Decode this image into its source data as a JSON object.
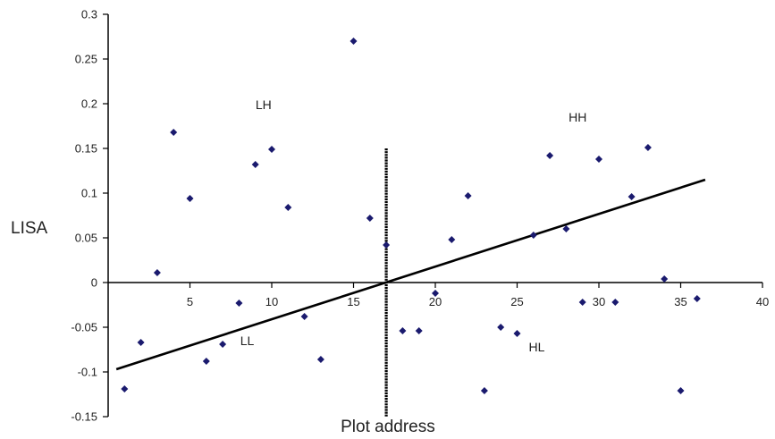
{
  "chart_data": {
    "type": "scatter",
    "title": "",
    "xlabel": "Plot address",
    "ylabel": "LISA",
    "xlim": [
      0,
      40
    ],
    "ylim": [
      -0.15,
      0.3
    ],
    "x_ticks": [
      5,
      10,
      15,
      20,
      25,
      30,
      35,
      40
    ],
    "x_tick_labels": [
      "5",
      "10",
      "15",
      "20",
      "25",
      "30",
      "35",
      "40"
    ],
    "y_ticks": [
      -0.15,
      -0.1,
      -0.05,
      0,
      0.05,
      0.1,
      0.15,
      0.2,
      0.25,
      0.3
    ],
    "y_tick_labels": [
      "-0.15",
      "-0.1",
      "-0.05",
      "0",
      "0.05",
      "0.1",
      "0.15",
      "0.2",
      "0.25",
      "0.3"
    ],
    "grid": false,
    "legend": "none",
    "marker_color": "#1a1a6e",
    "points": [
      {
        "x": 1,
        "y": -0.119
      },
      {
        "x": 2,
        "y": -0.067
      },
      {
        "x": 3,
        "y": 0.011
      },
      {
        "x": 4,
        "y": 0.168
      },
      {
        "x": 5,
        "y": 0.094
      },
      {
        "x": 6,
        "y": -0.088
      },
      {
        "x": 7,
        "y": -0.069
      },
      {
        "x": 8,
        "y": -0.023
      },
      {
        "x": 9,
        "y": 0.132
      },
      {
        "x": 10,
        "y": 0.149
      },
      {
        "x": 11,
        "y": 0.084
      },
      {
        "x": 12,
        "y": -0.038
      },
      {
        "x": 13,
        "y": -0.086
      },
      {
        "x": 15,
        "y": 0.27
      },
      {
        "x": 16,
        "y": 0.072
      },
      {
        "x": 17,
        "y": 0.042
      },
      {
        "x": 18,
        "y": -0.054
      },
      {
        "x": 19,
        "y": -0.054
      },
      {
        "x": 20,
        "y": -0.012
      },
      {
        "x": 21,
        "y": 0.048
      },
      {
        "x": 22,
        "y": 0.097
      },
      {
        "x": 23,
        "y": -0.121
      },
      {
        "x": 24,
        "y": -0.05
      },
      {
        "x": 25,
        "y": -0.057
      },
      {
        "x": 26,
        "y": 0.053
      },
      {
        "x": 27,
        "y": 0.142
      },
      {
        "x": 28,
        "y": 0.06
      },
      {
        "x": 29,
        "y": -0.022
      },
      {
        "x": 30,
        "y": 0.138
      },
      {
        "x": 31,
        "y": -0.022
      },
      {
        "x": 32,
        "y": 0.096
      },
      {
        "x": 33,
        "y": 0.151
      },
      {
        "x": 34,
        "y": 0.004
      },
      {
        "x": 35,
        "y": -0.121
      },
      {
        "x": 36,
        "y": -0.018
      }
    ],
    "trend_line": {
      "x": [
        0.5,
        36.5
      ],
      "y": [
        -0.097,
        0.115
      ]
    },
    "divider_line": {
      "x": 17,
      "y": [
        -0.15,
        0.15
      ]
    },
    "quadrant_labels": [
      {
        "text": "LH",
        "x": 9.5,
        "y": 0.194
      },
      {
        "text": "HH",
        "x": 28.7,
        "y": 0.18
      },
      {
        "text": "LL",
        "x": 8.5,
        "y": -0.07
      },
      {
        "text": "HL",
        "x": 26.2,
        "y": -0.077
      }
    ]
  }
}
